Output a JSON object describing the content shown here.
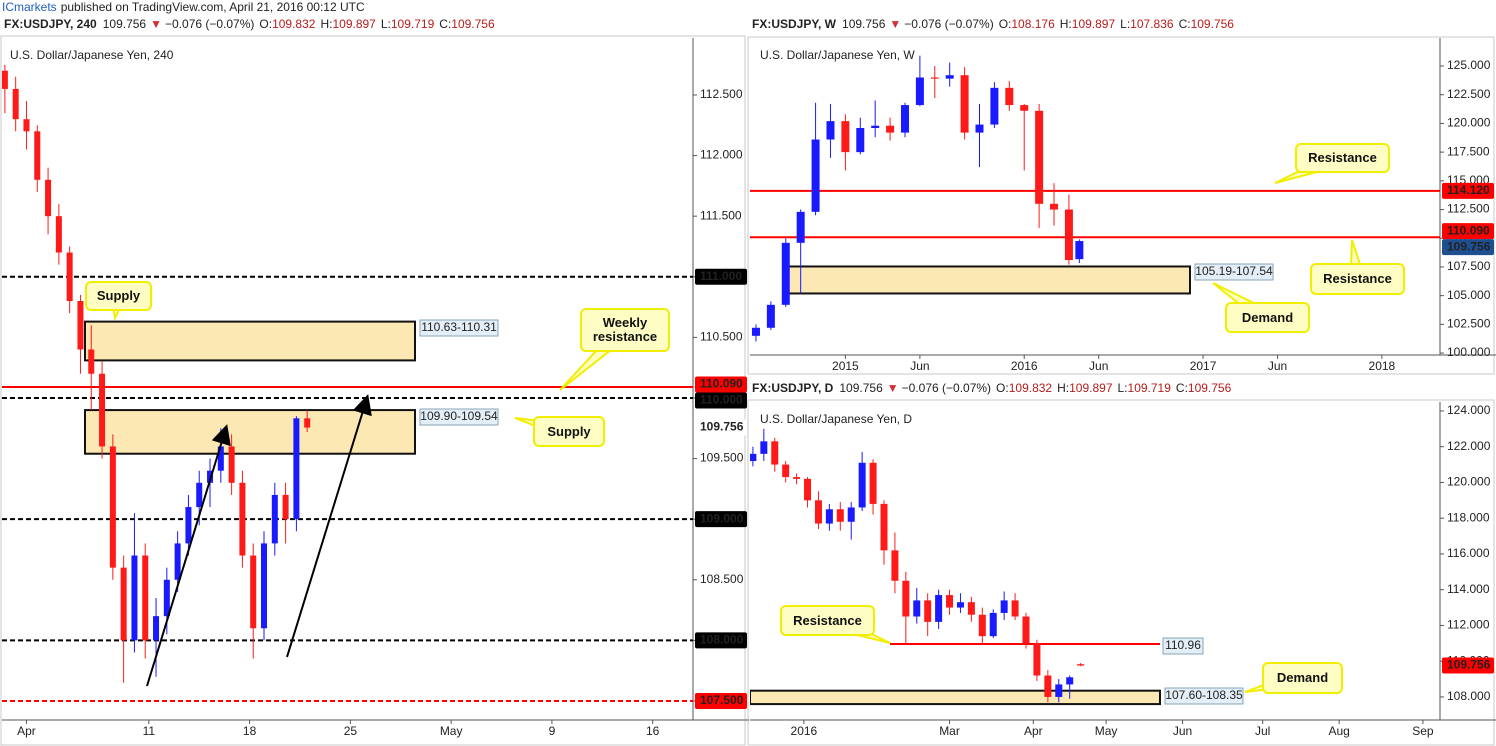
{
  "header": {
    "publisher": "ICmarkets",
    "byline": "published on TradingView.com, April 21, 2016 00:12 UTC"
  },
  "chart_data": [
    {
      "type": "candlestick",
      "title": "U.S. Dollar/Japanese Yen, 240",
      "header": {
        "symbol": "FX:USDJPY, 240",
        "last": "109.756",
        "arrow": "▼",
        "change": "−0.076 (−0.07%)",
        "ohlc": [
          [
            "O:",
            "109.832"
          ],
          [
            "H:",
            "109.897"
          ],
          [
            "L:",
            "109.719"
          ],
          [
            "C:",
            "109.756"
          ]
        ]
      },
      "up_color": "#1a1aff",
      "down_color": "#ff1a1a",
      "x": [
        0,
        0.75,
        1.5,
        2.25,
        3,
        3.75,
        4.5,
        5.25,
        6,
        6.75,
        7.5,
        8.25,
        9,
        9.75,
        10.5,
        11.25,
        12,
        12.75,
        13.5,
        14.25,
        15,
        15.75,
        16.5,
        17.25,
        18,
        18.75,
        19.5,
        20.25,
        21
      ],
      "open": [
        112.7,
        112.55,
        112.3,
        112.2,
        111.8,
        111.5,
        111.2,
        110.8,
        110.4,
        110.2,
        109.6,
        108.6,
        108,
        108.7,
        108,
        108.2,
        108.5,
        108.8,
        109.1,
        109.3,
        109.4,
        109.6,
        109.3,
        108.7,
        108.1,
        108.8,
        109.2,
        109,
        109.832
      ],
      "high": [
        112.75,
        112.65,
        112.45,
        112.25,
        111.9,
        111.6,
        111.25,
        110.85,
        110.6,
        110.3,
        109.7,
        108.7,
        109.05,
        108.8,
        108.35,
        108.6,
        108.9,
        109.2,
        109.4,
        109.5,
        109.75,
        109.7,
        109.4,
        108.8,
        108.9,
        109.3,
        109.3,
        109.85,
        109.897
      ],
      "low": [
        112.35,
        112.2,
        112.05,
        111.7,
        111.35,
        111.1,
        110.7,
        110.2,
        109.9,
        109.5,
        108.5,
        107.65,
        107.9,
        107.85,
        107.7,
        108.05,
        108.4,
        108.7,
        108.95,
        109.1,
        109.3,
        109.2,
        108.6,
        107.85,
        108,
        108.7,
        108.8,
        108.9,
        109.719
      ],
      "close": [
        112.55,
        112.3,
        112.2,
        111.8,
        111.5,
        111.2,
        110.8,
        110.4,
        110.2,
        109.6,
        108.6,
        108,
        108.7,
        108,
        108.2,
        108.5,
        108.8,
        109.1,
        109.3,
        109.4,
        109.6,
        109.3,
        108.7,
        108.1,
        108.8,
        109.2,
        109,
        109.832,
        109.756
      ],
      "xlim": [
        -0.2,
        47.8
      ],
      "xticks": [
        {
          "value": 1.5,
          "label": "Apr"
        },
        {
          "value": 10,
          "label": "11"
        },
        {
          "value": 17,
          "label": "18"
        },
        {
          "value": 24,
          "label": "25"
        },
        {
          "value": 31,
          "label": "May"
        },
        {
          "value": 38,
          "label": "9"
        },
        {
          "value": 45,
          "label": "16"
        }
      ],
      "ylim": [
        107.343,
        112.97
      ],
      "yticks": [
        {
          "value": 107.5,
          "label": "107.500"
        },
        {
          "value": 108,
          "label": "108.000"
        },
        {
          "value": 108.5,
          "label": "108.500"
        },
        {
          "value": 109,
          "label": "109.000"
        },
        {
          "value": 109.5,
          "label": "109.500"
        },
        {
          "value": 110,
          "label": "110.000"
        },
        {
          "value": 110.5,
          "label": "110.500"
        },
        {
          "value": 111,
          "label": "111.000"
        },
        {
          "value": 111.5,
          "label": "111.500"
        },
        {
          "value": 112,
          "label": "112.000"
        },
        {
          "value": 112.5,
          "label": "112.500"
        }
      ],
      "levels": [
        {
          "value": 111,
          "label": "111.000",
          "color": "#000000",
          "style": "dashed"
        },
        {
          "value": 110.09,
          "label": "110.090",
          "color": "#ff0000",
          "style": "solid"
        },
        {
          "value": 110,
          "label": "110.000",
          "color": "#000000",
          "style": "dashed"
        },
        {
          "value": 109,
          "label": "109.000",
          "color": "#000000",
          "style": "dashed"
        },
        {
          "value": 108,
          "label": "108.000",
          "color": "#000000",
          "style": "dashed"
        },
        {
          "value": 107.5,
          "label": "107.500",
          "color": "#ff0000",
          "style": "dashed"
        }
      ],
      "zones": [
        {
          "label": "110.63-110.31",
          "high": 110.63,
          "low": 110.31
        },
        {
          "label": "109.90-109.54",
          "high": 109.9,
          "low": 109.54
        }
      ],
      "zone_color": "#fce8b2",
      "last": {
        "value": 109.756,
        "color": "#ff0000"
      },
      "annotations": [
        "Supply",
        "Weekly resistance",
        "Supply"
      ]
    },
    {
      "type": "candlestick",
      "title": "U.S. Dollar/Japanese Yen, W",
      "header": {
        "symbol": "FX:USDJPY, W",
        "last": "109.756",
        "arrow": "▼",
        "change": "−0.076 (−0.07%)",
        "ohlc": [
          [
            "O:",
            "108.176"
          ],
          [
            "H:",
            "109.897"
          ],
          [
            "L:",
            "107.836"
          ],
          [
            "C:",
            "109.756"
          ]
        ]
      },
      "up_color": "#1a1aff",
      "down_color": "#ff1a1a",
      "x": [
        -6,
        -5,
        -4,
        -3,
        -2,
        -1,
        0,
        1,
        2,
        3,
        4,
        5,
        6,
        7,
        8,
        9,
        10,
        11,
        12,
        13,
        14,
        15,
        15.7
      ],
      "open": [
        101.5,
        102.2,
        104.2,
        109.6,
        112.3,
        118.6,
        120.2,
        117.5,
        119.6,
        119.8,
        119.2,
        121.6,
        124,
        123.9,
        124.2,
        119.2,
        119.9,
        123.1,
        121.6,
        121.1,
        113,
        112.5,
        108.176
      ],
      "high": [
        102.5,
        104.5,
        110,
        112.5,
        121.8,
        121.7,
        120.8,
        120.5,
        122,
        120.5,
        121.8,
        125.9,
        125,
        125.3,
        124.9,
        121.7,
        123.6,
        123.7,
        121.7,
        121.7,
        114.8,
        113.8,
        109.897
      ],
      "low": [
        101,
        102,
        104,
        105.2,
        112,
        117,
        115.9,
        117.3,
        118.8,
        118.5,
        118.8,
        121.5,
        122.2,
        123.2,
        118.6,
        116.2,
        119.6,
        121.1,
        115.9,
        110.9,
        111.1,
        107.7,
        107.836
      ],
      "close": [
        102.2,
        104.2,
        109.6,
        112.3,
        118.6,
        120.2,
        117.5,
        119.6,
        119.8,
        119.2,
        121.6,
        124,
        123.9,
        124.2,
        119.2,
        119.9,
        123.1,
        121.6,
        121.1,
        113,
        112.5,
        108.1,
        109.756
      ],
      "xlim": [
        -6.4,
        39.9
      ],
      "xticks": [
        {
          "value": 0,
          "label": "2015"
        },
        {
          "value": 5,
          "label": "Jun"
        },
        {
          "value": 12,
          "label": "2016"
        },
        {
          "value": 17,
          "label": "Jun"
        },
        {
          "value": 24,
          "label": "2017"
        },
        {
          "value": 29,
          "label": "Jun"
        },
        {
          "value": 36,
          "label": "2018"
        }
      ],
      "ylim": [
        99.83,
        127.44
      ],
      "yticks": [
        {
          "value": 100,
          "label": "100.000"
        },
        {
          "value": 102.5,
          "label": "102.500"
        },
        {
          "value": 105,
          "label": "105.000"
        },
        {
          "value": 107.5,
          "label": "107.500"
        },
        {
          "value": 110,
          "label": "110.000"
        },
        {
          "value": 112.5,
          "label": "112.500"
        },
        {
          "value": 115,
          "label": "115.000"
        },
        {
          "value": 117.5,
          "label": "117.500"
        },
        {
          "value": 120,
          "label": "120.000"
        },
        {
          "value": 122.5,
          "label": "122.500"
        },
        {
          "value": 125,
          "label": "125.000"
        }
      ],
      "levels": [
        {
          "value": 114.12,
          "label": "114.120",
          "color": "#ff0000",
          "style": "solid"
        },
        {
          "value": 110.09,
          "label": "110.090",
          "color": "#ff0000",
          "style": "solid"
        }
      ],
      "zones": [
        {
          "label": "105.19-107.54",
          "high": 107.54,
          "low": 105.19
        }
      ],
      "zone_color": "#fce8b2",
      "last": {
        "value": 109.756,
        "color": "#1d4f91"
      },
      "annotations": [
        "Resistance",
        "Resistance",
        "Demand"
      ]
    },
    {
      "type": "candlestick",
      "title": "U.S. Dollar/Japanese Yen, D",
      "header": {
        "symbol": "FX:USDJPY, D",
        "last": "109.756",
        "arrow": "▼",
        "change": "−0.076 (−0.07%)",
        "ohlc": [
          [
            "O:",
            "109.832"
          ],
          [
            "H:",
            "109.897"
          ],
          [
            "L:",
            "109.719"
          ],
          [
            "C:",
            "109.756"
          ]
        ]
      },
      "up_color": "#1a1aff",
      "down_color": "#ff1a1a",
      "x": [
        -14,
        -11,
        -8,
        -5,
        -2,
        1,
        4,
        7,
        10,
        13,
        16,
        19,
        22,
        25,
        28,
        31,
        34,
        37,
        40,
        43,
        46,
        49,
        52,
        55,
        58,
        61,
        64,
        67,
        70,
        73,
        76
      ],
      "open": [
        121.2,
        121.6,
        122.3,
        121,
        120.3,
        120.2,
        119,
        117.7,
        118.5,
        117.8,
        118.6,
        121.1,
        118.8,
        116.2,
        114.5,
        112.5,
        113.4,
        112.2,
        113.7,
        113,
        113.3,
        112.6,
        111.4,
        112.7,
        113.4,
        112.5,
        111,
        109.2,
        108,
        108.7,
        109.832
      ],
      "high": [
        122,
        123,
        122.5,
        121.2,
        120.5,
        120.3,
        119.5,
        118.8,
        118.9,
        118.9,
        121.7,
        121.3,
        119,
        117.2,
        115,
        114.1,
        113.8,
        114,
        114,
        113.8,
        113.6,
        113,
        112.9,
        113.9,
        113.8,
        112.7,
        111.2,
        109.5,
        109,
        109.2,
        109.897
      ],
      "low": [
        120.9,
        121.2,
        120.6,
        120,
        119.9,
        118.6,
        117.4,
        117.3,
        117.3,
        116.8,
        118.4,
        118.2,
        115.4,
        113.8,
        111,
        112.1,
        111.4,
        111.8,
        112.6,
        112.7,
        112.2,
        111,
        111.3,
        112.3,
        112.3,
        110.7,
        108.9,
        107.7,
        107.7,
        107.9,
        109.719
      ],
      "close": [
        121.6,
        122.3,
        121,
        120.3,
        120.2,
        119,
        117.7,
        118.5,
        117.8,
        118.6,
        121.1,
        118.8,
        116.2,
        114.5,
        112.5,
        113.4,
        112.2,
        113.7,
        113,
        113.3,
        112.6,
        111.4,
        112.7,
        113.4,
        112.5,
        111,
        109.2,
        108,
        108.7,
        109.1,
        109.756
      ],
      "xlim": [
        -14.8,
        174.7
      ],
      "xticks": [
        {
          "value": 0,
          "label": "2016"
        },
        {
          "value": 40,
          "label": "Mar"
        },
        {
          "value": 63,
          "label": "Apr"
        },
        {
          "value": 83,
          "label": "May"
        },
        {
          "value": 104,
          "label": "Jun"
        },
        {
          "value": 126,
          "label": "Jul"
        },
        {
          "value": 147,
          "label": "Aug"
        },
        {
          "value": 170,
          "label": "Sep"
        }
      ],
      "ylim": [
        106.71,
        124.5
      ],
      "yticks": [
        {
          "value": 108,
          "label": "108.000"
        },
        {
          "value": 110,
          "label": "110.000"
        },
        {
          "value": 112,
          "label": "112.000"
        },
        {
          "value": 114,
          "label": "114.000"
        },
        {
          "value": 116,
          "label": "116.000"
        },
        {
          "value": 118,
          "label": "118.000"
        },
        {
          "value": 120,
          "label": "120.000"
        },
        {
          "value": 122,
          "label": "122.000"
        },
        {
          "value": 124,
          "label": "124.000"
        }
      ],
      "levels": [
        {
          "value": 110.96,
          "label": "110.96",
          "color": "#ff0000",
          "style": "solid"
        }
      ],
      "zones": [
        {
          "label": "107.60-108.35",
          "high": 108.35,
          "low": 107.6
        }
      ],
      "zone_color": "#fce8b2",
      "last": {
        "value": 109.756,
        "color": "#ff0000"
      },
      "annotations": [
        "Resistance",
        "Demand"
      ]
    }
  ]
}
